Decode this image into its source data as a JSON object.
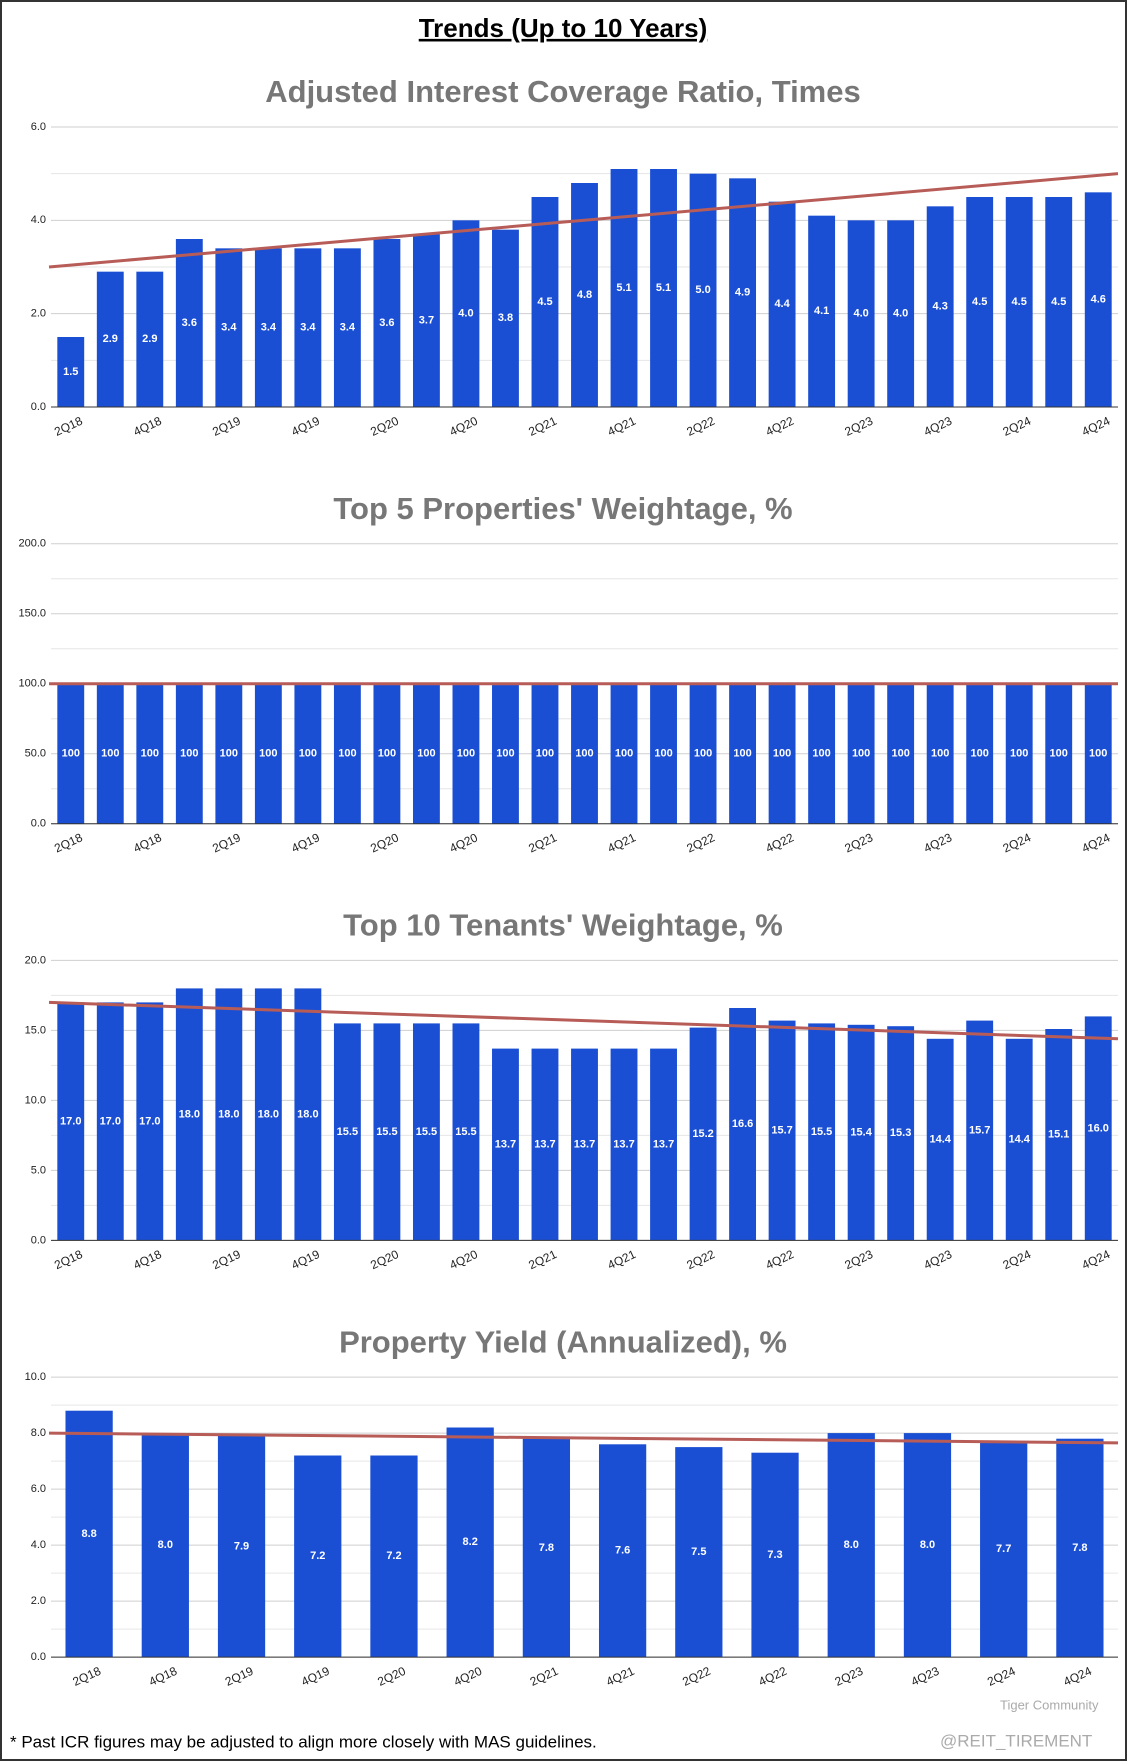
{
  "title": "Trends (Up to 10 Years)",
  "footnote": "* Past ICR figures may be adjusted to align more closely with MAS guidelines.",
  "watermark": [
    "Tiger Community",
    "@REIT_TIREMENT"
  ],
  "chart_data": [
    {
      "type": "bar",
      "title": "Adjusted Interest Coverage Ratio, Times",
      "categories": [
        "2Q18",
        null,
        "4Q18",
        null,
        "2Q19",
        null,
        "4Q19",
        null,
        "2Q20",
        null,
        "4Q20",
        null,
        "2Q21",
        null,
        "4Q21",
        null,
        "2Q22",
        null,
        "4Q22",
        null,
        "2Q23",
        null,
        "4Q23",
        null,
        "2Q24",
        null,
        "4Q24"
      ],
      "values": [
        1.5,
        2.9,
        2.9,
        3.6,
        3.4,
        3.4,
        3.4,
        3.4,
        3.6,
        3.7,
        4.0,
        3.8,
        4.5,
        4.8,
        5.1,
        5.1,
        5.0,
        4.9,
        4.4,
        4.1,
        4.0,
        4.0,
        4.3,
        4.5,
        4.5,
        4.5,
        4.6
      ],
      "value_labels": [
        "1.5",
        "2.9",
        "2.9",
        "3.6",
        "3.4",
        "3.4",
        "3.4",
        "3.4",
        "3.6",
        "3.7",
        "4.0",
        "3.8",
        "4.5",
        "4.8",
        "5.1",
        "5.1",
        "5.0",
        "4.9",
        "4.4",
        "4.1",
        "4.0",
        "4.0",
        "4.3",
        "4.5",
        "4.5",
        "4.5",
        "4.6"
      ],
      "color": "#1b4fd3",
      "ylim": [
        0,
        6
      ],
      "yticks": [
        {
          "value": 0,
          "label": "0.0"
        },
        {
          "value": 2,
          "label": "2.0"
        },
        {
          "value": 4,
          "label": "4.0"
        },
        {
          "value": 6,
          "label": "6.0"
        }
      ],
      "minor_yticks": [
        1,
        3,
        5
      ],
      "grid": true,
      "trendline": {
        "color": "#b85c58",
        "values": [
          3.0,
          5.0
        ]
      }
    },
    {
      "type": "bar",
      "title": "Top 5 Properties' Weightage, %",
      "categories": [
        "2Q18",
        null,
        "4Q18",
        null,
        "2Q19",
        null,
        "4Q19",
        null,
        "2Q20",
        null,
        "4Q20",
        null,
        "2Q21",
        null,
        "4Q21",
        null,
        "2Q22",
        null,
        "4Q22",
        null,
        "2Q23",
        null,
        "4Q23",
        null,
        "2Q24",
        null,
        "4Q24"
      ],
      "values": [
        100,
        100,
        100,
        100,
        100,
        100,
        100,
        100,
        100,
        100,
        100,
        100,
        100,
        100,
        100,
        100,
        100,
        100,
        100,
        100,
        100,
        100,
        100,
        100,
        100,
        100,
        100
      ],
      "color": "#1b4fd3",
      "ylim": [
        0,
        200
      ],
      "yticks": [
        {
          "value": 0,
          "label": "0.0"
        },
        {
          "value": 50,
          "label": "50.0"
        },
        {
          "value": 100,
          "label": "100.0"
        },
        {
          "value": 150,
          "label": "150.0"
        },
        {
          "value": 200,
          "label": "200.0"
        }
      ],
      "minor_yticks": [
        25,
        75,
        125,
        175
      ],
      "grid": true,
      "trendline": {
        "color": "#b85c58",
        "values": [
          100,
          100
        ]
      }
    },
    {
      "type": "bar",
      "title": "Top 10 Tenants' Weightage, %",
      "categories": [
        "2Q18",
        null,
        "4Q18",
        null,
        "2Q19",
        null,
        "4Q19",
        null,
        "2Q20",
        null,
        "4Q20",
        null,
        "2Q21",
        null,
        "4Q21",
        null,
        "2Q22",
        null,
        "4Q22",
        null,
        "2Q23",
        null,
        "4Q23",
        null,
        "2Q24",
        null,
        "4Q24"
      ],
      "values": [
        17.0,
        17.0,
        17.0,
        18.0,
        18.0,
        18.0,
        18.0,
        15.5,
        15.5,
        15.5,
        15.5,
        13.7,
        13.7,
        13.7,
        13.7,
        13.7,
        15.2,
        16.6,
        15.7,
        15.5,
        15.4,
        15.3,
        14.4,
        15.7,
        14.4,
        15.1,
        16.0
      ],
      "value_labels": [
        "17.0",
        "17.0",
        "17.0",
        "18.0",
        "18.0",
        "18.0",
        "18.0",
        "15.5",
        "15.5",
        "15.5",
        "15.5",
        "13.7",
        "13.7",
        "13.7",
        "13.7",
        "13.7",
        "15.2",
        "16.6",
        "15.7",
        "15.5",
        "15.4",
        "15.3",
        "14.4",
        "15.7",
        "14.4",
        "15.1",
        "16.0"
      ],
      "color": "#1b4fd3",
      "ylim": [
        0,
        20
      ],
      "yticks": [
        {
          "value": 0,
          "label": "0.0"
        },
        {
          "value": 5,
          "label": "5.0"
        },
        {
          "value": 10,
          "label": "10.0"
        },
        {
          "value": 15,
          "label": "15.0"
        },
        {
          "value": 20,
          "label": "20.0"
        }
      ],
      "minor_yticks": [
        2.5,
        7.5,
        12.5,
        17.5
      ],
      "grid": true,
      "trendline": {
        "color": "#b85c58",
        "values": [
          17.0,
          14.4
        ]
      }
    },
    {
      "type": "bar",
      "title": "Property Yield (Annualized), %",
      "categories": [
        "2Q18",
        "4Q18",
        "2Q19",
        "4Q19",
        "2Q20",
        "4Q20",
        "2Q21",
        "4Q21",
        "2Q22",
        "4Q22",
        "2Q23",
        "4Q23",
        "2Q24",
        "4Q24"
      ],
      "values": [
        8.8,
        8.0,
        7.9,
        7.2,
        7.2,
        8.2,
        7.8,
        7.6,
        7.5,
        7.3,
        8.0,
        8.0,
        7.7,
        7.8
      ],
      "value_labels": [
        "8.8",
        "8.0",
        "7.9",
        "7.2",
        "7.2",
        "8.2",
        "7.8",
        "7.6",
        "7.5",
        "7.3",
        "8.0",
        "8.0",
        "7.7",
        "7.8"
      ],
      "color": "#1b4fd3",
      "ylim": [
        0,
        10
      ],
      "yticks": [
        {
          "value": 0,
          "label": "0.0"
        },
        {
          "value": 2,
          "label": "2.0"
        },
        {
          "value": 4,
          "label": "4.0"
        },
        {
          "value": 6,
          "label": "6.0"
        },
        {
          "value": 8,
          "label": "8.0"
        },
        {
          "value": 10,
          "label": "10.0"
        }
      ],
      "minor_yticks": [
        1,
        3,
        5,
        7,
        9
      ],
      "grid": true,
      "trendline": {
        "color": "#b85c58",
        "values": [
          8.0,
          7.65
        ]
      }
    }
  ]
}
